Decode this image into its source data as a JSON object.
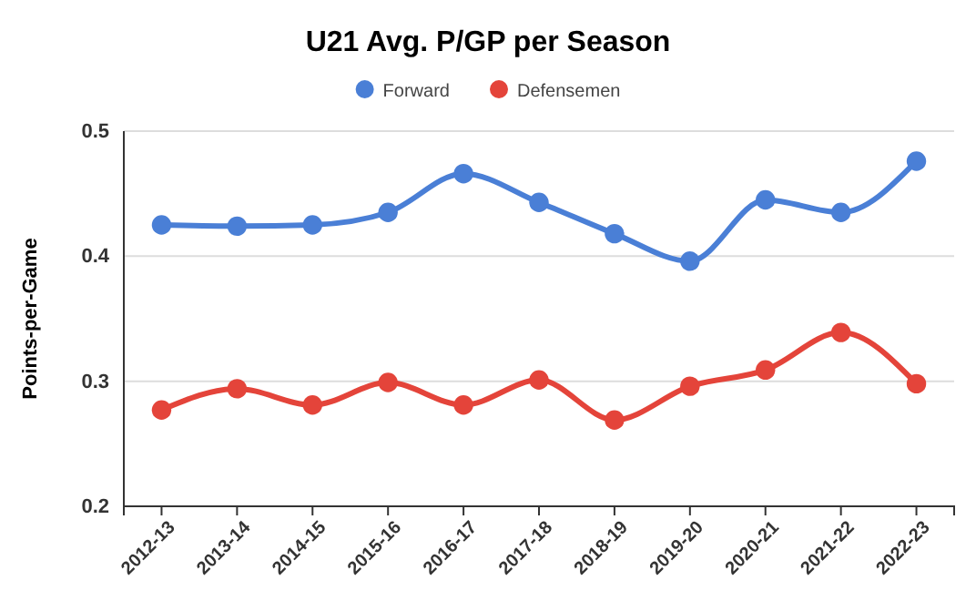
{
  "chart_data": {
    "type": "line",
    "title": "U21 Avg. P/GP per Season",
    "ylabel": "Points-per-Game",
    "categories": [
      "2012-13",
      "2013-14",
      "2014-15",
      "2015-16",
      "2016-17",
      "2017-18",
      "2018-19",
      "2019-20",
      "2020-21",
      "2021-22",
      "2022-23"
    ],
    "series": [
      {
        "name": "Forward",
        "color": "#4a7fd6",
        "values": [
          0.425,
          0.424,
          0.425,
          0.435,
          0.466,
          0.443,
          0.418,
          0.396,
          0.445,
          0.435,
          0.476
        ]
      },
      {
        "name": "Defensemen",
        "color": "#e4443a",
        "values": [
          0.277,
          0.294,
          0.281,
          0.299,
          0.281,
          0.301,
          0.269,
          0.296,
          0.309,
          0.339,
          0.298
        ]
      }
    ],
    "ylim": [
      0.2,
      0.5
    ],
    "yticks": [
      0.2,
      0.3,
      0.4,
      0.5
    ],
    "grid": "y",
    "legend": "top",
    "marker": "circle",
    "line_style": "solid"
  }
}
